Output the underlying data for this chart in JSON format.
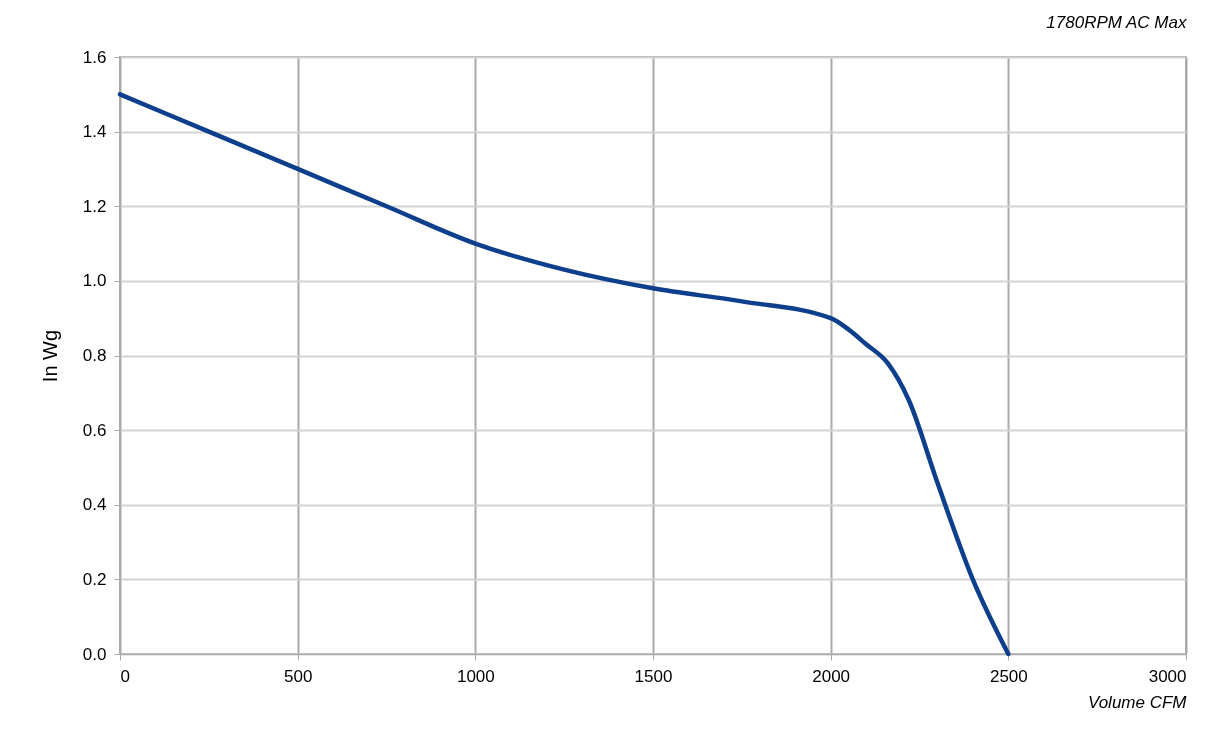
{
  "chart_data": {
    "type": "line",
    "title": "1780RPM AC Max",
    "xlabel": "Volume CFM",
    "ylabel": "In Wg",
    "x": [
      0,
      250,
      500,
      750,
      1000,
      1250,
      1500,
      1750,
      2000,
      2050,
      2100,
      2160,
      2220,
      2300,
      2400,
      2500
    ],
    "series": [
      {
        "color": "#0d3f8c",
        "values": [
          1.5,
          1.4,
          1.3,
          1.2,
          1.1,
          1.03,
          0.98,
          0.945,
          0.9,
          0.87,
          0.83,
          0.78,
          0.68,
          0.46,
          0.2,
          0
        ]
      }
    ],
    "xlim": [
      0,
      3000
    ],
    "xticks": [
      0,
      500,
      1000,
      1500,
      2000,
      2500,
      3000
    ],
    "ylim": [
      0,
      1.6
    ],
    "yticks": [
      {
        "value": 0,
        "label": "0.0"
      },
      {
        "value": 0.2,
        "label": "0.2"
      },
      {
        "value": 0.4,
        "label": "0.4"
      },
      {
        "value": 0.6,
        "label": "0.6"
      },
      {
        "value": 0.8,
        "label": "0.8"
      },
      {
        "value": 1,
        "label": "1.0"
      },
      {
        "value": 1.2,
        "label": "1.2"
      },
      {
        "value": 1.4,
        "label": "1.4"
      },
      {
        "value": 1.6,
        "label": "1.6"
      }
    ],
    "grid": true,
    "marker": "none",
    "line_style": "solid",
    "legend": false
  }
}
